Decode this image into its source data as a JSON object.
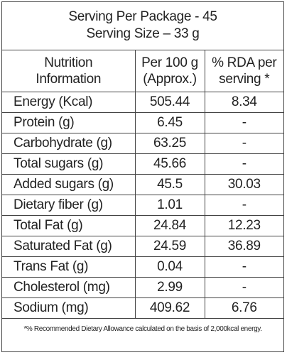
{
  "header": {
    "line1": "Serving Per Package - 45",
    "line2": "Serving Size – 33 g"
  },
  "table": {
    "columns": [
      [
        "Nutrition",
        "Information"
      ],
      [
        "Per 100 g",
        "(Approx.)"
      ],
      [
        "% RDA per",
        "serving *"
      ]
    ],
    "rows": [
      [
        "Energy (Kcal)",
        "505.44",
        "8.34"
      ],
      [
        "Protein (g)",
        "6.45",
        "-"
      ],
      [
        "Carbohydrate (g)",
        "63.25",
        "-"
      ],
      [
        "Total sugars (g)",
        "45.66",
        "-"
      ],
      [
        "Added sugars (g)",
        "45.5",
        "30.03"
      ],
      [
        "Dietary fiber (g)",
        "1.01",
        "-"
      ],
      [
        "Total Fat (g)",
        "24.84",
        "12.23"
      ],
      [
        "Saturated Fat (g)",
        "24.59",
        "36.89"
      ],
      [
        "Trans Fat (g)",
        "0.04",
        "-"
      ],
      [
        "Cholesterol (mg)",
        "2.99",
        "-"
      ],
      [
        "Sodium (mg)",
        "409.62",
        "6.76"
      ]
    ]
  },
  "footnote": "*% Recommended Dietary Allowance calculated on the basis of 2,000kcal energy."
}
